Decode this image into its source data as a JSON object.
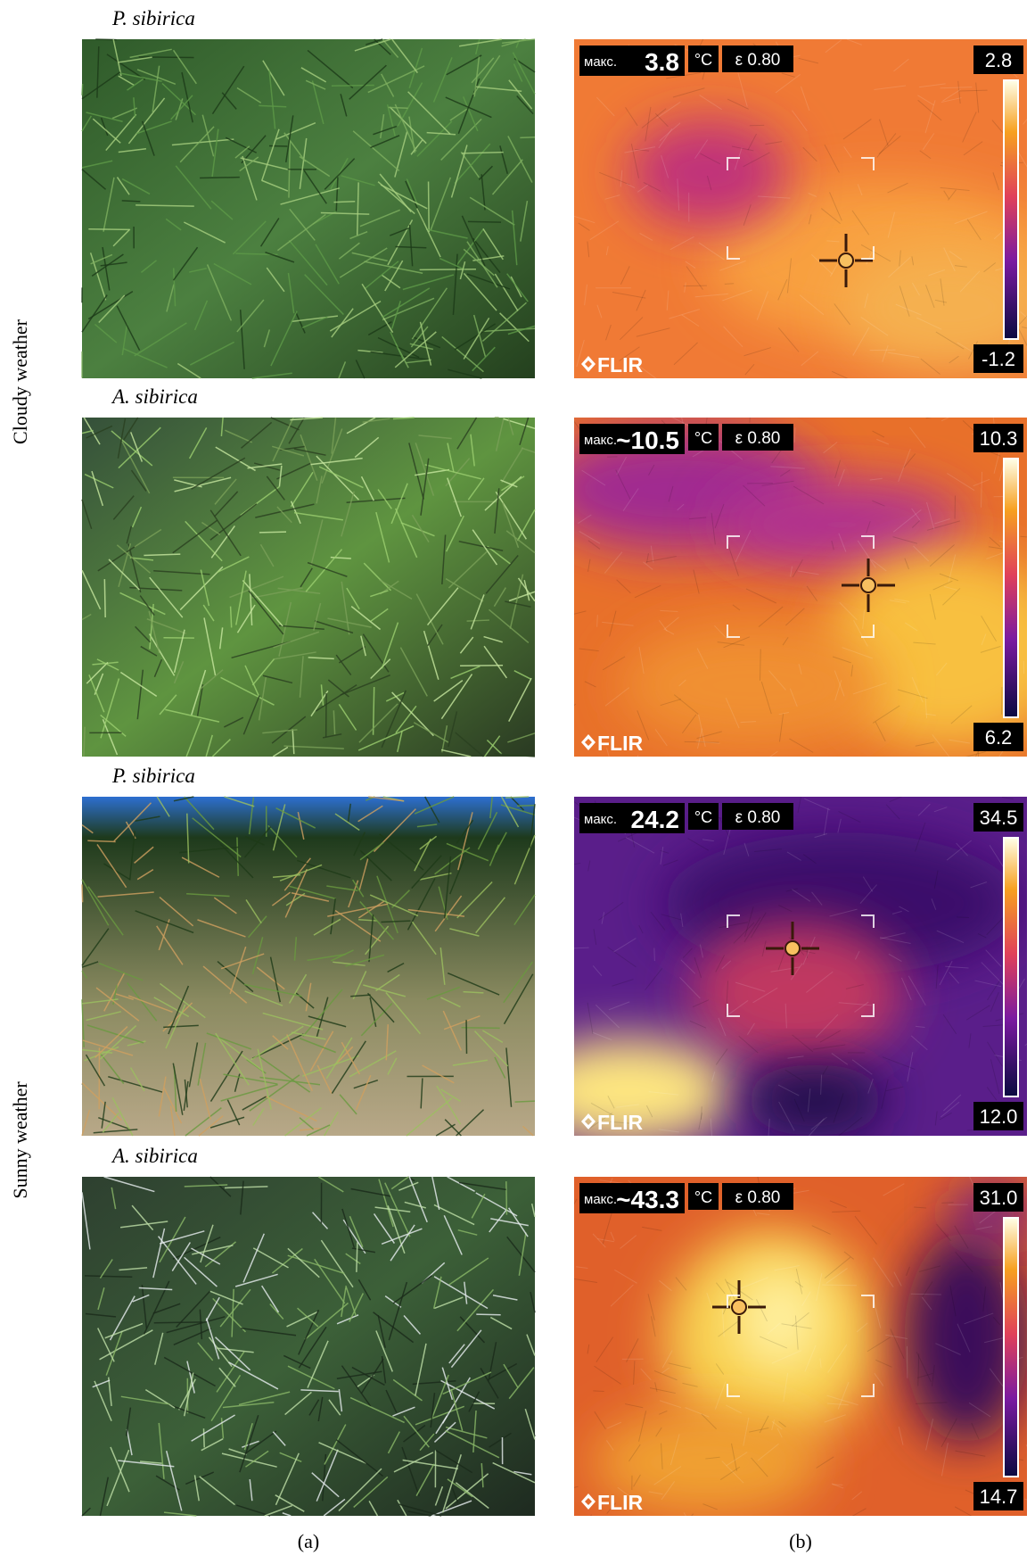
{
  "row_labels": [
    "Cloudy weather",
    "Sunny weather"
  ],
  "panels": [
    {
      "species": "P. sibirica",
      "max_label": "макс.",
      "max_value": "3.8",
      "unit": "°C",
      "emissivity": "ε 0.80",
      "scale_max": "2.8",
      "scale_min": "-1.2",
      "brand": "FLIR"
    },
    {
      "species": "A. sibirica",
      "max_label": "макс.",
      "max_value": "~10.5",
      "unit": "°C",
      "emissivity": "ε 0.80",
      "scale_max": "10.3",
      "scale_min": "6.2",
      "brand": "FLIR"
    },
    {
      "species": "P. sibirica",
      "max_label": "макс.",
      "max_value": "24.2",
      "unit": "°C",
      "emissivity": "ε 0.80",
      "scale_max": "34.5",
      "scale_min": "12.0",
      "brand": "FLIR"
    },
    {
      "species": "A. sibirica",
      "max_label": "макс.",
      "max_value": "~43.3",
      "unit": "°C",
      "emissivity": "ε 0.80",
      "scale_max": "31.0",
      "scale_min": "14.7",
      "brand": "FLIR"
    }
  ],
  "captions": [
    "(a)",
    "(b)"
  ]
}
